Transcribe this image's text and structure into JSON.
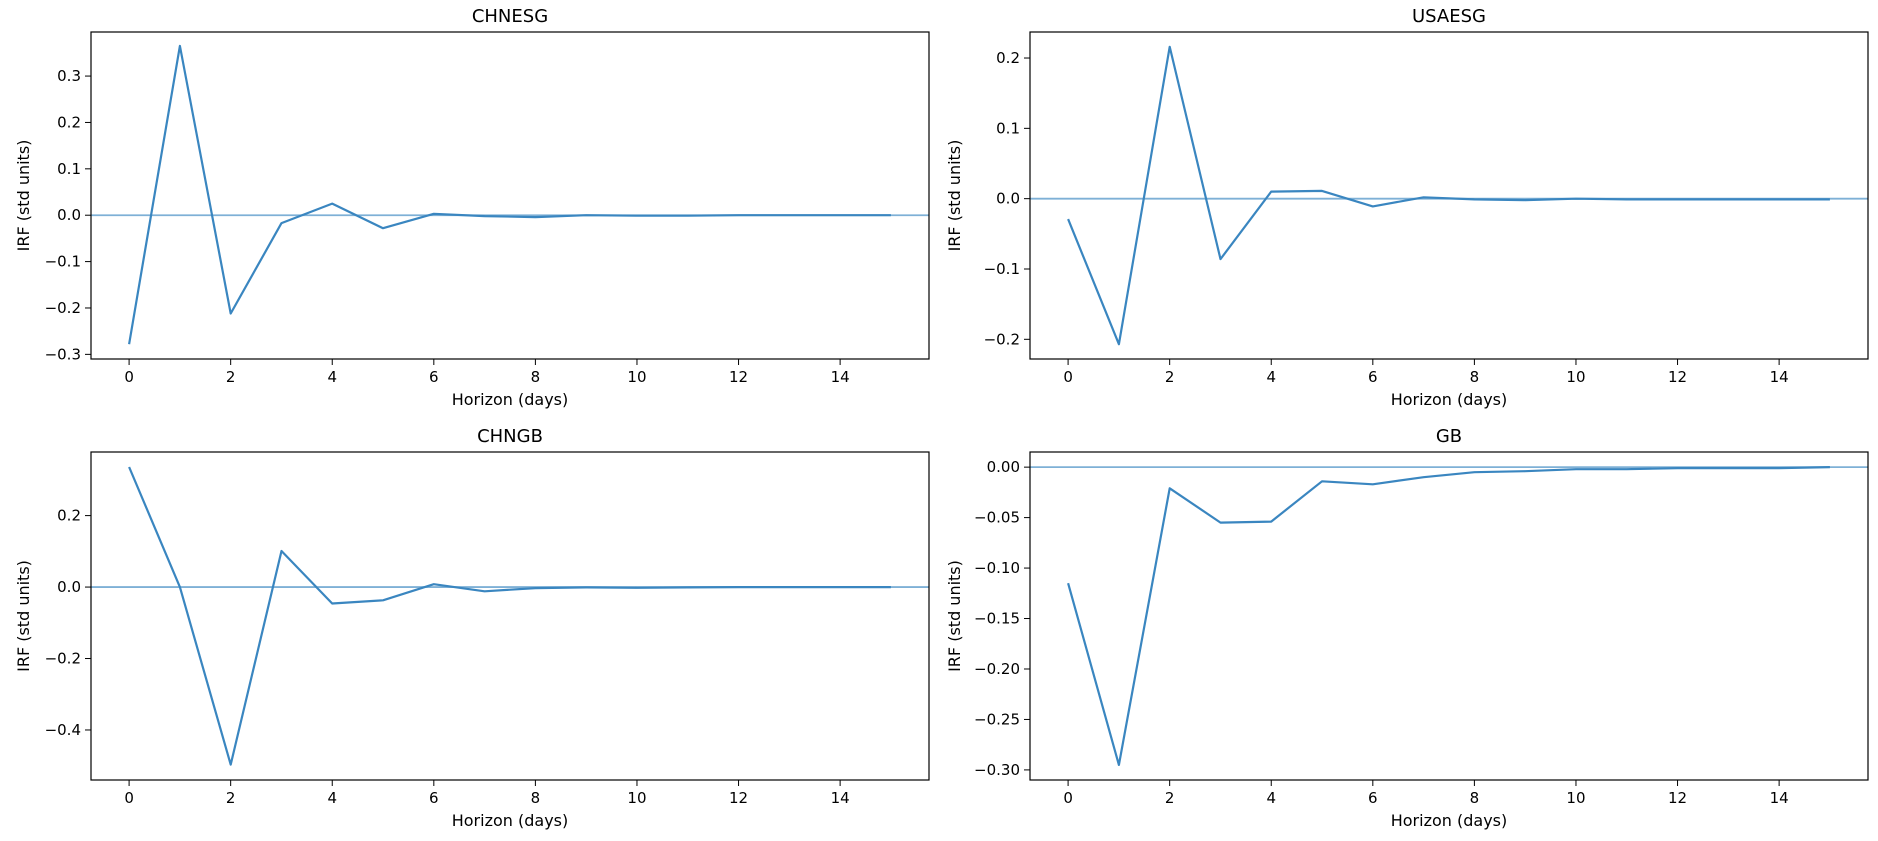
{
  "figure": {
    "background": "#ffffff",
    "line_color": "#3a86c0",
    "zero_line_color": "#7eb0d6"
  },
  "chart_data": [
    {
      "type": "line",
      "title": "CHNESG",
      "xlabel": "Horizon (days)",
      "ylabel": "IRF (std units)",
      "x": [
        0,
        1,
        2,
        3,
        4,
        5,
        6,
        7,
        8,
        9,
        10,
        11,
        12,
        13,
        14,
        15
      ],
      "series": [
        {
          "values": [
            -0.278,
            0.365,
            -0.212,
            -0.017,
            0.025,
            -0.028,
            0.003,
            -0.002,
            -0.004,
            0.0,
            -0.001,
            -0.001,
            0.0,
            0.0,
            0.0,
            0.0
          ]
        }
      ],
      "xlim": [
        -0.75,
        15.75
      ],
      "ylim": [
        -0.31,
        0.395
      ],
      "xticks": [
        0,
        2,
        4,
        6,
        8,
        10,
        12,
        14
      ],
      "yticks": [
        -0.3,
        -0.2,
        -0.1,
        0.0,
        0.1,
        0.2,
        0.3
      ],
      "ytick_labels": [
        "−0.3",
        "−0.2",
        "−0.1",
        "0.0",
        "0.1",
        "0.2",
        "0.3"
      ],
      "zero_line": true,
      "grid": false
    },
    {
      "type": "line",
      "title": "USAESG",
      "xlabel": "Horizon (days)",
      "ylabel": "IRF (std units)",
      "x": [
        0,
        1,
        2,
        3,
        4,
        5,
        6,
        7,
        8,
        9,
        10,
        11,
        12,
        13,
        14,
        15
      ],
      "series": [
        {
          "values": [
            -0.029,
            -0.207,
            0.216,
            -0.086,
            0.01,
            0.011,
            -0.011,
            0.002,
            -0.001,
            -0.002,
            0.0,
            -0.001,
            -0.001,
            -0.001,
            -0.001,
            -0.001
          ]
        }
      ],
      "xlim": [
        -0.75,
        15.75
      ],
      "ylim": [
        -0.228,
        0.237
      ],
      "xticks": [
        0,
        2,
        4,
        6,
        8,
        10,
        12,
        14
      ],
      "yticks": [
        -0.2,
        -0.1,
        0.0,
        0.1,
        0.2
      ],
      "ytick_labels": [
        "−0.2",
        "−0.1",
        "0.0",
        "0.1",
        "0.2"
      ],
      "zero_line": true,
      "grid": false
    },
    {
      "type": "line",
      "title": "CHNGB",
      "xlabel": "Horizon (days)",
      "ylabel": "IRF (std units)",
      "x": [
        0,
        1,
        2,
        3,
        4,
        5,
        6,
        7,
        8,
        9,
        10,
        11,
        12,
        13,
        14,
        15
      ],
      "series": [
        {
          "values": [
            0.336,
            0.0,
            -0.497,
            0.101,
            -0.046,
            -0.037,
            0.008,
            -0.012,
            -0.003,
            -0.001,
            -0.002,
            -0.001,
            0.0,
            0.0,
            0.0,
            0.0
          ]
        }
      ],
      "xlim": [
        -0.75,
        15.75
      ],
      "ylim": [
        -0.54,
        0.378
      ],
      "xticks": [
        0,
        2,
        4,
        6,
        8,
        10,
        12,
        14
      ],
      "yticks": [
        -0.4,
        -0.2,
        0.0,
        0.2
      ],
      "ytick_labels": [
        "−0.4",
        "−0.2",
        "0.0",
        "0.2"
      ],
      "zero_line": true,
      "grid": false
    },
    {
      "type": "line",
      "title": "GB",
      "xlabel": "Horizon (days)",
      "ylabel": "IRF (std units)",
      "x": [
        0,
        1,
        2,
        3,
        4,
        5,
        6,
        7,
        8,
        9,
        10,
        11,
        12,
        13,
        14,
        15
      ],
      "series": [
        {
          "values": [
            -0.115,
            -0.295,
            -0.021,
            -0.055,
            -0.054,
            -0.014,
            -0.017,
            -0.01,
            -0.005,
            -0.004,
            -0.002,
            -0.002,
            -0.001,
            -0.001,
            -0.001,
            0.0
          ]
        }
      ],
      "xlim": [
        -0.75,
        15.75
      ],
      "ylim": [
        -0.31,
        0.015
      ],
      "xticks": [
        0,
        2,
        4,
        6,
        8,
        10,
        12,
        14
      ],
      "yticks": [
        -0.3,
        -0.25,
        -0.2,
        -0.15,
        -0.1,
        -0.05,
        0.0
      ],
      "ytick_labels": [
        "−0.30",
        "−0.25",
        "−0.20",
        "−0.15",
        "−0.10",
        "−0.05",
        "0.00"
      ],
      "zero_line": true,
      "grid": false
    }
  ]
}
